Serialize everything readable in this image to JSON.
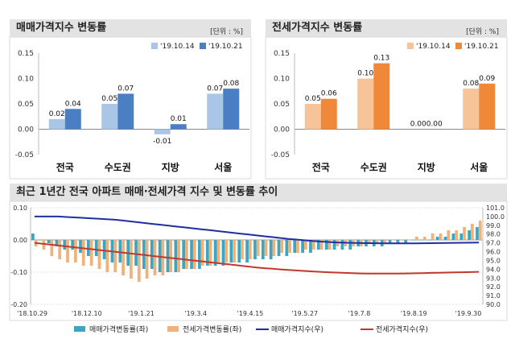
{
  "colors": {
    "sale_prev": "#a9c6e6",
    "sale_curr": "#4a7fc3",
    "jeonse_prev": "#f7c499",
    "jeonse_curr": "#f0883a",
    "sale_index_line": "#1f2f9e",
    "jeonse_index_line": "#c0392b",
    "panel_title_bg": "#e3e3e3"
  },
  "chart_data": [
    {
      "id": "sale",
      "type": "bar",
      "title": "매매가격지수 변동률",
      "unit_label": "[단위 : %]",
      "categories": [
        "전국",
        "수도권",
        "지방",
        "서울"
      ],
      "series": [
        {
          "name": "'19.10.14",
          "values": [
            0.02,
            0.05,
            -0.01,
            0.07
          ]
        },
        {
          "name": "'19.10.21",
          "values": [
            0.04,
            0.07,
            0.01,
            0.08
          ]
        }
      ],
      "labels_prev": [
        "0.02",
        "0.05",
        "-0.01",
        "0.07"
      ],
      "labels_curr": [
        "0.04",
        "0.07",
        "0.01",
        "0.08"
      ],
      "ylim": [
        -0.05,
        0.15
      ],
      "yticks": [
        -0.05,
        0.0,
        0.05,
        0.1,
        0.15
      ],
      "ytick_labels": [
        "-0.05",
        "0.00",
        "0.05",
        "0.10",
        "0.15"
      ],
      "legend": "top-right"
    },
    {
      "id": "jeonse",
      "type": "bar",
      "title": "전세가격지수 변동률",
      "unit_label": "[단위 : %]",
      "categories": [
        "전국",
        "수도권",
        "지방",
        "서울"
      ],
      "series": [
        {
          "name": "'19.10.14",
          "values": [
            0.05,
            0.1,
            0.0,
            0.08
          ]
        },
        {
          "name": "'19.10.21",
          "values": [
            0.06,
            0.13,
            0.0,
            0.09
          ]
        }
      ],
      "labels_prev": [
        "0.05",
        "0.10",
        "0.00",
        "0.08"
      ],
      "labels_curr": [
        "0.06",
        "0.13",
        "0.00",
        "0.09"
      ],
      "ylim": [
        -0.05,
        0.15
      ],
      "yticks": [
        -0.05,
        0.0,
        0.05,
        0.1,
        0.15
      ],
      "ytick_labels": [
        "-0.05",
        "0.00",
        "0.05",
        "0.10",
        "0.15"
      ],
      "legend": "top-right"
    },
    {
      "id": "trend",
      "type": "bar",
      "title": "최근 1년간 전국 아파트 매매·전세가격 지수 및 변동률 추이",
      "x_labels": [
        "'18.10.29",
        "'18.12.10",
        "'19.1.21",
        "'19.3.4",
        "'19.4.15",
        "'19.5.27",
        "'19.7.8",
        "'19.8.19",
        "'19.9.30"
      ],
      "ylim_left": [
        -0.2,
        0.1
      ],
      "yticks_left": [
        "0.10",
        "0.00",
        "-0.10",
        "-0.20"
      ],
      "ylim_right": [
        90.0,
        101.0
      ],
      "yticks_right": [
        "101.0",
        "100.0",
        "99.0",
        "98.0",
        "97.0",
        "96.0",
        "95.0",
        "94.0",
        "93.0",
        "92.0",
        "91.0",
        "90.0"
      ],
      "series": [
        {
          "name": "매매가격변동률(좌)",
          "kind": "bar",
          "axis": "left",
          "values": [
            0.02,
            0.0,
            -0.01,
            -0.02,
            -0.03,
            -0.03,
            -0.04,
            -0.05,
            -0.05,
            -0.06,
            -0.07,
            -0.07,
            -0.08,
            -0.08,
            -0.09,
            -0.09,
            -0.1,
            -0.1,
            -0.1,
            -0.09,
            -0.09,
            -0.09,
            -0.08,
            -0.08,
            -0.08,
            -0.07,
            -0.07,
            -0.07,
            -0.06,
            -0.06,
            -0.06,
            -0.05,
            -0.05,
            -0.04,
            -0.04,
            -0.04,
            -0.03,
            -0.03,
            -0.03,
            -0.03,
            -0.03,
            -0.02,
            -0.02,
            -0.02,
            -0.02,
            -0.01,
            -0.01,
            -0.01,
            0.0,
            0.0,
            0.0,
            0.01,
            0.01,
            0.02,
            0.02,
            0.03,
            0.04
          ]
        },
        {
          "name": "전세가격변동률(좌)",
          "kind": "bar",
          "axis": "left",
          "values": [
            -0.02,
            -0.03,
            -0.05,
            -0.06,
            -0.07,
            -0.07,
            -0.08,
            -0.08,
            -0.09,
            -0.1,
            -0.1,
            -0.11,
            -0.12,
            -0.13,
            -0.12,
            -0.11,
            -0.11,
            -0.1,
            -0.1,
            -0.09,
            -0.09,
            -0.08,
            -0.08,
            -0.07,
            -0.07,
            -0.07,
            -0.06,
            -0.06,
            -0.05,
            -0.05,
            -0.05,
            -0.04,
            -0.04,
            -0.04,
            -0.03,
            -0.03,
            -0.03,
            -0.03,
            -0.02,
            -0.02,
            -0.02,
            -0.02,
            -0.01,
            -0.01,
            -0.01,
            0.0,
            0.0,
            0.0,
            0.01,
            0.01,
            0.02,
            0.02,
            0.03,
            0.03,
            0.04,
            0.05,
            0.06
          ]
        },
        {
          "name": "매매가격지수(우)",
          "kind": "line",
          "axis": "right",
          "values": [
            100.0,
            100.0,
            100.0,
            100.0,
            99.95,
            99.9,
            99.85,
            99.8,
            99.75,
            99.7,
            99.65,
            99.55,
            99.45,
            99.35,
            99.25,
            99.15,
            99.05,
            98.95,
            98.85,
            98.75,
            98.65,
            98.55,
            98.45,
            98.35,
            98.25,
            98.15,
            98.05,
            97.95,
            97.85,
            97.75,
            97.65,
            97.55,
            97.45,
            97.38,
            97.3,
            97.22,
            97.15,
            97.1,
            97.05,
            97.02,
            97.0,
            96.98,
            96.97,
            96.96,
            96.95,
            96.95,
            96.95,
            96.95,
            96.95,
            96.96,
            96.97,
            96.98,
            96.99,
            97.0,
            97.01,
            97.02,
            97.03
          ]
        },
        {
          "name": "전세가격지수(우)",
          "kind": "line",
          "axis": "right",
          "values": [
            97.0,
            96.9,
            96.8,
            96.7,
            96.6,
            96.5,
            96.4,
            96.3,
            96.2,
            96.1,
            96.0,
            95.9,
            95.8,
            95.7,
            95.6,
            95.5,
            95.4,
            95.3,
            95.2,
            95.1,
            95.0,
            94.9,
            94.8,
            94.7,
            94.6,
            94.5,
            94.4,
            94.3,
            94.2,
            94.12,
            94.05,
            93.98,
            93.92,
            93.86,
            93.8,
            93.75,
            93.7,
            93.66,
            93.62,
            93.58,
            93.55,
            93.52,
            93.5,
            93.5,
            93.5,
            93.5,
            93.5,
            93.52,
            93.54,
            93.56,
            93.58,
            93.6,
            93.62,
            93.64,
            93.66,
            93.68,
            93.7
          ]
        }
      ],
      "legend_labels": [
        "매매가격변동률(좌)",
        "전세가격변동률(좌)",
        "매매가격지수(우)",
        "전세가격지수(우)"
      ],
      "legend": "bottom"
    }
  ]
}
